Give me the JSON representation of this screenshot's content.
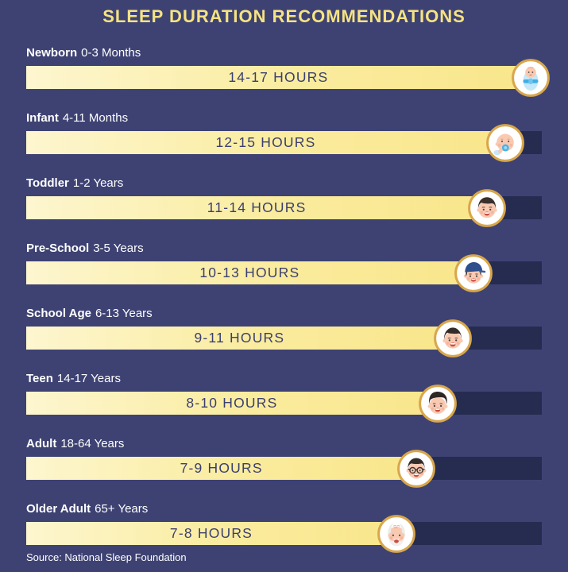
{
  "chart_data": {
    "type": "bar",
    "orientation": "horizontal",
    "title": "SLEEP DURATION RECOMMENDATIONS",
    "source": "Source: National Sleep Foundation",
    "value_unit": "hours",
    "xlim": [
      0,
      18
    ],
    "grid": false,
    "legend": false,
    "rows": [
      {
        "group": "Newborn",
        "age": "0-3 Months",
        "hours_min": 14,
        "hours_max": 17,
        "bar_label": "14-17 HOURS",
        "bar_pct": 97.8,
        "avatar": "swaddled-newborn"
      },
      {
        "group": "Infant",
        "age": "4-11 Months",
        "hours_min": 12,
        "hours_max": 15,
        "bar_label": "12-15 HOURS",
        "bar_pct": 92.9,
        "avatar": "baby-with-pacifier"
      },
      {
        "group": "Toddler",
        "age": "1-2 Years",
        "hours_min": 11,
        "hours_max": 14,
        "bar_label": "11-14 HOURS",
        "bar_pct": 89.4,
        "avatar": "toddler-face"
      },
      {
        "group": "Pre-School",
        "age": "3-5 Years",
        "hours_min": 10,
        "hours_max": 13,
        "bar_label": "10-13 HOURS",
        "bar_pct": 86.7,
        "avatar": "child-with-cap"
      },
      {
        "group": "School Age",
        "age": "6-13 Years",
        "hours_min": 9,
        "hours_max": 11,
        "bar_label": "9-11 HOURS",
        "bar_pct": 82.7,
        "avatar": "boy-face"
      },
      {
        "group": "Teen",
        "age": "14-17 Years",
        "hours_min": 8,
        "hours_max": 10,
        "bar_label": "8-10 HOURS",
        "bar_pct": 79.8,
        "avatar": "teen-face"
      },
      {
        "group": "Adult",
        "age": "18-64 Years",
        "hours_min": 7,
        "hours_max": 9,
        "bar_label": "7-9 HOURS",
        "bar_pct": 75.7,
        "avatar": "man-with-glasses"
      },
      {
        "group": "Older Adult",
        "age": "65+ Years",
        "hours_min": 7,
        "hours_max": 8,
        "bar_label": "7-8 HOURS",
        "bar_pct": 71.8,
        "avatar": "older-man-face"
      }
    ],
    "colors": {
      "background": "#3E4273",
      "track": "#262B50",
      "bar_start": "#FDF6CF",
      "bar_end": "#F9E68C",
      "bar_text": "#3A3F6E",
      "title": "#F5E382",
      "label": "#FFFFFF",
      "ring_gold": "#D8A74B"
    }
  }
}
